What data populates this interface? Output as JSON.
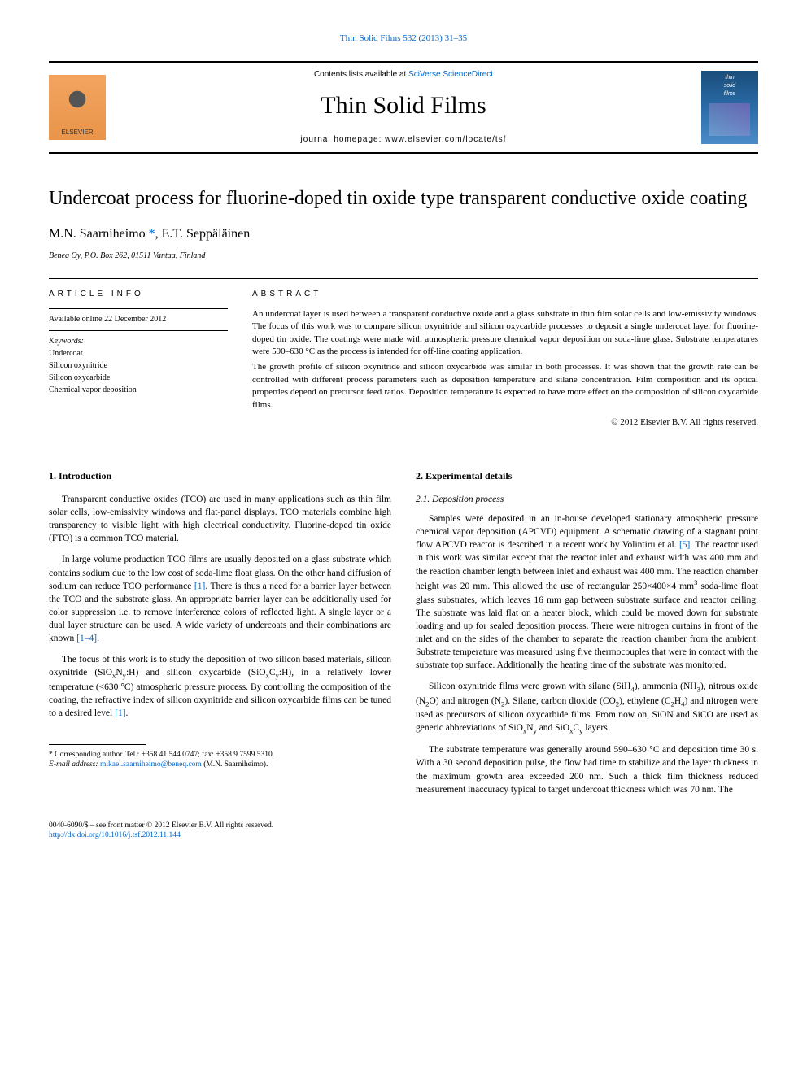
{
  "top_link": {
    "journal": "Thin Solid Films",
    "citation": "532 (2013) 31–35"
  },
  "header": {
    "contents_prefix": "Contents lists available at ",
    "contents_link": "SciVerse ScienceDirect",
    "journal_name": "Thin Solid Films",
    "homepage_label": "journal homepage: ",
    "homepage_url": "www.elsevier.com/locate/tsf",
    "elsevier_label": "ELSEVIER",
    "cover_text_1": "thin",
    "cover_text_2": "solid",
    "cover_text_3": "films"
  },
  "title": "Undercoat process for fluorine-doped tin oxide type transparent conductive oxide coating",
  "authors": {
    "a1_name": "M.N. Saarniheimo",
    "a1_corr": " *",
    "sep": ", ",
    "a2_name": "E.T. Seppäläinen"
  },
  "affiliation": "Beneq Oy, P.O. Box 262, 01511 Vantaa, Finland",
  "article_info": {
    "heading": "article info",
    "available": "Available online 22 December 2012",
    "keywords_label": "Keywords:",
    "kw1": "Undercoat",
    "kw2": "Silicon oxynitride",
    "kw3": "Silicon oxycarbide",
    "kw4": "Chemical vapor deposition"
  },
  "abstract": {
    "heading": "abstract",
    "p1": "An undercoat layer is used between a transparent conductive oxide and a glass substrate in thin film solar cells and low-emissivity windows. The focus of this work was to compare silicon oxynitride and silicon oxycarbide processes to deposit a single undercoat layer for fluorine-doped tin oxide. The coatings were made with atmospheric pressure chemical vapor deposition on soda-lime glass. Substrate temperatures were 590–630 °C as the process is intended for off-line coating application.",
    "p2": "The growth profile of silicon oxynitride and silicon oxycarbide was similar in both processes. It was shown that the growth rate can be controlled with different process parameters such as deposition temperature and silane concentration. Film composition and its optical properties depend on precursor feed ratios. Deposition temperature is expected to have more effect on the composition of silicon oxycarbide films.",
    "copyright": "© 2012 Elsevier B.V. All rights reserved."
  },
  "body": {
    "left": {
      "h1": "1. Introduction",
      "p1": "Transparent conductive oxides (TCO) are used in many applications such as thin film solar cells, low-emissivity windows and flat-panel displays. TCO materials combine high transparency to visible light with high electrical conductivity. Fluorine-doped tin oxide (FTO) is a common TCO material.",
      "p2a": "In large volume production TCO films are usually deposited on a glass substrate which contains sodium due to the low cost of soda-lime float glass. On the other hand diffusion of sodium can reduce TCO performance ",
      "p2_ref1": "[1]",
      "p2b": ". There is thus a need for a barrier layer between the TCO and the substrate glass. An appropriate barrier layer can be additionally used for color suppression i.e. to remove interference colors of reflected light. A single layer or a dual layer structure can be used. A wide variety of undercoats and their combinations are known ",
      "p2_ref2": "[1–4]",
      "p2c": ".",
      "p3a": "The focus of this work is to study the deposition of two silicon based materials, silicon oxynitride (SiOxNy:H) and silicon oxycarbide (SiOxCy:H), in a relatively lower temperature (<630 °C) atmospheric pressure process. By controlling the composition of the coating, the refractive index of silicon oxynitride and silicon oxycarbide films can be tuned to a desired level ",
      "p3_ref": "[1]",
      "p3b": "."
    },
    "right": {
      "h1": "2. Experimental details",
      "h2": "2.1. Deposition process",
      "p1a": "Samples were deposited in an in-house developed stationary atmospheric pressure chemical vapor deposition (APCVD) equipment. A schematic drawing of a stagnant point flow APCVD reactor is described in a recent work by Volintiru et al. ",
      "p1_ref": "[5]",
      "p1b": ". The reactor used in this work was similar except that the reactor inlet and exhaust width was 400 mm and the reaction chamber length between inlet and exhaust was 400 mm. The reaction chamber height was 20 mm. This allowed the use of rectangular 250×400×4 mm³ soda-lime float glass substrates, which leaves 16 mm gap between substrate surface and reactor ceiling. The substrate was laid flat on a heater block, which could be moved down for substrate loading and up for sealed deposition process. There were nitrogen curtains in front of the inlet and on the sides of the chamber to separate the reaction chamber from the ambient. Substrate temperature was measured using five thermocouples that were in contact with the substrate top surface. Additionally the heating time of the substrate was monitored.",
      "p2": "Silicon oxynitride films were grown with silane (SiH4), ammonia (NH3), nitrous oxide (N2O) and nitrogen (N2). Silane, carbon dioxide (CO2), ethylene (C2H4) and nitrogen were used as precursors of silicon oxycarbide films. From now on, SiON and SiCO are used as generic abbreviations of SiOxNy and SiOxCy layers.",
      "p3": "The substrate temperature was generally around 590–630 °C and deposition time 30 s. With a 30 second deposition pulse, the flow had time to stabilize and the layer thickness in the maximum growth area exceeded 200 nm. Such a thick film thickness reduced measurement inaccuracy typical to target undercoat thickness which was 70 nm. The"
    }
  },
  "footnote": {
    "corr_label": "* Corresponding author. Tel.: +358 41 544 0747; fax: +358 9 7599 5310.",
    "email_label": "E-mail address: ",
    "email": "mikael.saarniheimo@beneq.com",
    "email_who": " (M.N. Saarniheimo)."
  },
  "footer": {
    "issn": "0040-6090/$ – see front matter © 2012 Elsevier B.V. All rights reserved.",
    "doi": "http://dx.doi.org/10.1016/j.tsf.2012.11.144"
  },
  "colors": {
    "link": "#0066cc",
    "text": "#000000",
    "bg": "#ffffff",
    "elsevier_bg": "#f4a460",
    "cover_top": "#1a4d7a",
    "cover_bottom": "#4a8bc8"
  },
  "typography": {
    "body_pt": 11.5,
    "title_pt": 24,
    "authors_pt": 16,
    "journal_name_pt": 30,
    "abstract_pt": 11,
    "info_pt": 10,
    "footnote_pt": 9.5
  }
}
